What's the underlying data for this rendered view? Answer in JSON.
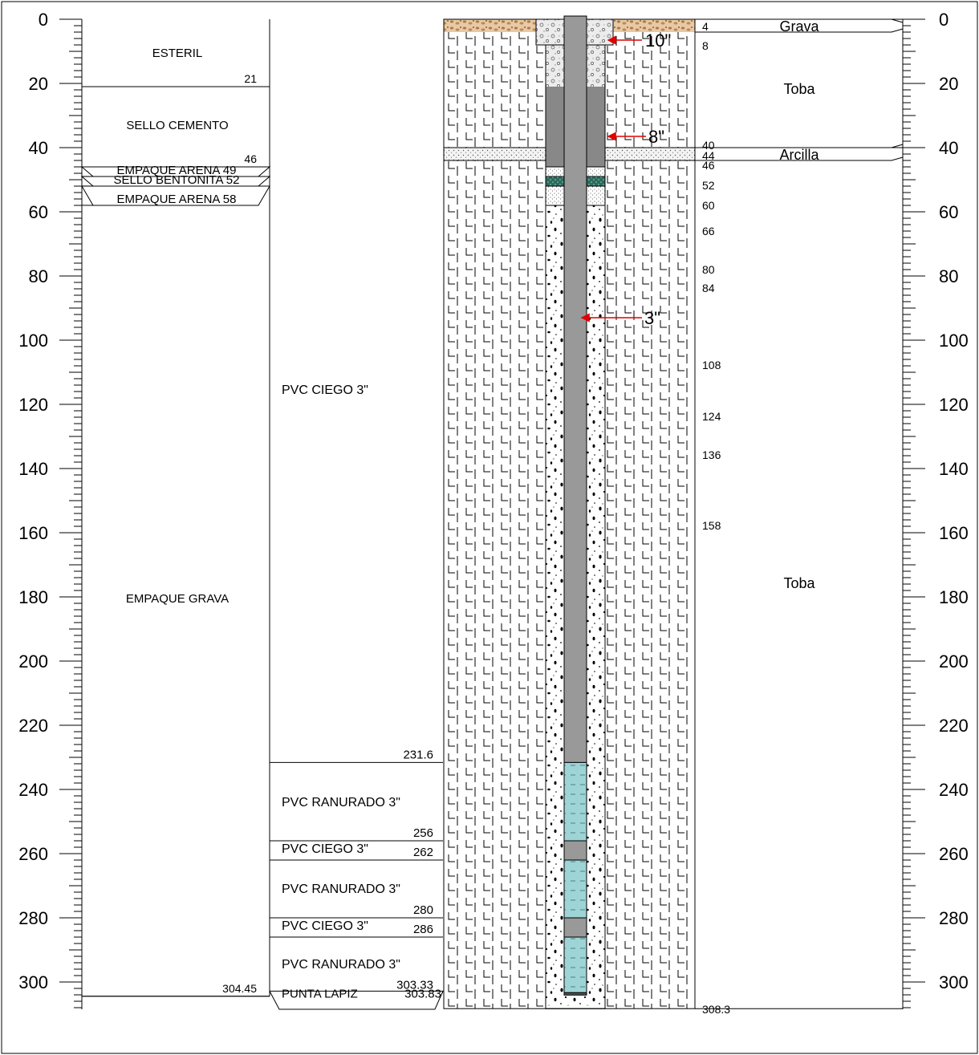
{
  "scale": {
    "labels": [
      "0",
      "20",
      "40",
      "60",
      "80",
      "100",
      "120",
      "140",
      "160",
      "180",
      "200",
      "220",
      "240",
      "260",
      "280",
      "300"
    ],
    "values": [
      0,
      20,
      40,
      60,
      80,
      100,
      120,
      140,
      160,
      180,
      200,
      220,
      240,
      260,
      280,
      300
    ],
    "minor_step": 2,
    "max_depth": 310
  },
  "fill_column": {
    "layers": [
      {
        "label": "ESTERIL",
        "label_depth": 10.5,
        "bottom": 21,
        "bottom_label": "21",
        "style": "plain"
      },
      {
        "label": "SELLO CEMENTO",
        "label_depth": 33,
        "bottom": 46,
        "bottom_label": "46",
        "style": "plain"
      },
      {
        "label": "EMPAQUE ARENA",
        "top": 46,
        "bottom": 49,
        "bottom_label": "49",
        "style": "thin"
      },
      {
        "label": "SELLO BENTONITA",
        "top": 49,
        "bottom": 52,
        "bottom_label": "52",
        "style": "thin"
      },
      {
        "label": "EMPAQUE ARENA",
        "top": 52,
        "bottom": 58,
        "bottom_label": "58",
        "style": "thin"
      },
      {
        "label": "EMPAQUE GRAVA",
        "label_depth": 180.5,
        "bottom": 304.45,
        "bottom_label": "304.45",
        "style": "plain"
      }
    ]
  },
  "casing_column": {
    "segments": [
      {
        "label": "PVC CIEGO 3\"",
        "top": 0,
        "bottom": 231.6,
        "bottom_label": "231.6",
        "label_depth": 115.5
      },
      {
        "label": "PVC RANURADO 3\"",
        "top": 231.6,
        "bottom": 256,
        "bottom_label": "256",
        "label_depth": 244
      },
      {
        "label": "PVC CIEGO 3\"",
        "top": 256,
        "bottom": 262,
        "bottom_label": "262",
        "label_depth": 259
      },
      {
        "label": "PVC RANURADO 3\"",
        "top": 262,
        "bottom": 280,
        "bottom_label": "280",
        "label_depth": 271
      },
      {
        "label": "PVC CIEGO 3\"",
        "top": 280,
        "bottom": 286,
        "bottom_label": "286",
        "label_depth": 283
      },
      {
        "label": "PVC RANURADO 3\"",
        "top": 286,
        "bottom": 303.33,
        "bottom_label": "303.33",
        "label_depth": 294.5
      },
      {
        "label": "PUNTA LAPIZ",
        "top": 303.33,
        "bottom": 303.83,
        "bottom_label": "303.83",
        "label_depth": 303.83
      }
    ]
  },
  "diameters": [
    {
      "label": "10\"",
      "depth": 6.5
    },
    {
      "label": "8\"",
      "depth": 36.5
    },
    {
      "label": "3\"",
      "depth": 93
    }
  ],
  "depth_marks": [
    "4",
    "8",
    "40",
    "44",
    "46",
    "52",
    "60",
    "66",
    "80",
    "84",
    "108",
    "124",
    "136",
    "158",
    "308.3"
  ],
  "depth_mark_values": [
    4,
    8,
    40,
    44,
    46,
    52,
    60,
    66,
    80,
    84,
    108,
    124,
    136,
    158,
    308.3
  ],
  "lithology": [
    {
      "label": "Grava",
      "top": 0,
      "bottom": 4,
      "label_depth": 2.5
    },
    {
      "label": "Toba",
      "top": 4,
      "bottom": 40,
      "label_depth": 22
    },
    {
      "label": "Arcilla",
      "top": 40,
      "bottom": 44,
      "label_depth": 42.5
    },
    {
      "label": "Toba",
      "top": 44,
      "bottom": 308.3,
      "label_depth": 176
    }
  ],
  "colors": {
    "casing_blank": "#999999",
    "casing_screen": "#9ed4d6",
    "cement_seal": "#888888",
    "bentonite": "#2b6b5e",
    "gravel_top": "#c9a27a",
    "arrow": "#e00000",
    "line": "#000000"
  }
}
